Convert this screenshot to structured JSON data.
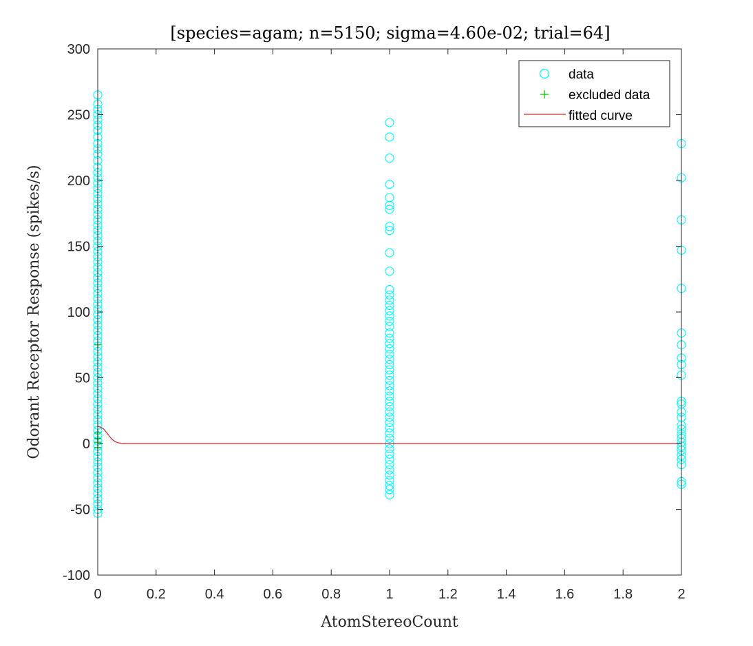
{
  "chart_data": {
    "type": "scatter",
    "title": "[species=agam; n=5150; sigma=4.60e-02; trial=64]",
    "xlabel": "AtomStereoCount",
    "ylabel": "Odorant Receptor Response (spikes/s)",
    "xlim": [
      0,
      2
    ],
    "ylim": [
      -100,
      300
    ],
    "xticks": [
      "0",
      "0.2",
      "0.4",
      "0.6",
      "0.8",
      "1",
      "1.2",
      "1.4",
      "1.6",
      "1.8",
      "2"
    ],
    "yticks": [
      "-100",
      "-50",
      "0",
      "50",
      "100",
      "150",
      "200",
      "250",
      "300"
    ],
    "legend_position": "top-right",
    "series": [
      {
        "name": "data",
        "marker": "circle",
        "color": "#00ffff",
        "points": [
          [
            0,
            265
          ],
          [
            0,
            258
          ],
          [
            0,
            254
          ],
          [
            0,
            250
          ],
          [
            0,
            246
          ],
          [
            0,
            242
          ],
          [
            0,
            238
          ],
          [
            0,
            233
          ],
          [
            0,
            228
          ],
          [
            0,
            224
          ],
          [
            0,
            220
          ],
          [
            0,
            215
          ],
          [
            0,
            210
          ],
          [
            0,
            206
          ],
          [
            0,
            202
          ],
          [
            0,
            198
          ],
          [
            0,
            194
          ],
          [
            0,
            190
          ],
          [
            0,
            186
          ],
          [
            0,
            182
          ],
          [
            0,
            178
          ],
          [
            0,
            174
          ],
          [
            0,
            170
          ],
          [
            0,
            166
          ],
          [
            0,
            162
          ],
          [
            0,
            158
          ],
          [
            0,
            154
          ],
          [
            0,
            150
          ],
          [
            0,
            146
          ],
          [
            0,
            142
          ],
          [
            0,
            138
          ],
          [
            0,
            134
          ],
          [
            0,
            130
          ],
          [
            0,
            126
          ],
          [
            0,
            122
          ],
          [
            0,
            118
          ],
          [
            0,
            114
          ],
          [
            0,
            110
          ],
          [
            0,
            106
          ],
          [
            0,
            102
          ],
          [
            0,
            98
          ],
          [
            0,
            94
          ],
          [
            0,
            90
          ],
          [
            0,
            86
          ],
          [
            0,
            82
          ],
          [
            0,
            78
          ],
          [
            0,
            74
          ],
          [
            0,
            70
          ],
          [
            0,
            66
          ],
          [
            0,
            62
          ],
          [
            0,
            58
          ],
          [
            0,
            54
          ],
          [
            0,
            50
          ],
          [
            0,
            46
          ],
          [
            0,
            42
          ],
          [
            0,
            38
          ],
          [
            0,
            34
          ],
          [
            0,
            30
          ],
          [
            0,
            26
          ],
          [
            0,
            22
          ],
          [
            0,
            18
          ],
          [
            0,
            14
          ],
          [
            0,
            10
          ],
          [
            0,
            6
          ],
          [
            0,
            2
          ],
          [
            0,
            -2
          ],
          [
            0,
            -6
          ],
          [
            0,
            -10
          ],
          [
            0,
            -14
          ],
          [
            0,
            -18
          ],
          [
            0,
            -22
          ],
          [
            0,
            -26
          ],
          [
            0,
            -30
          ],
          [
            0,
            -34
          ],
          [
            0,
            -38
          ],
          [
            0,
            -42
          ],
          [
            0,
            -46
          ],
          [
            0,
            -50
          ],
          [
            0,
            -53
          ],
          [
            1,
            244
          ],
          [
            1,
            233
          ],
          [
            1,
            217
          ],
          [
            1,
            197
          ],
          [
            1,
            187
          ],
          [
            1,
            181
          ],
          [
            1,
            178
          ],
          [
            1,
            165
          ],
          [
            1,
            162
          ],
          [
            1,
            145
          ],
          [
            1,
            131
          ],
          [
            1,
            117
          ],
          [
            1,
            113
          ],
          [
            1,
            109
          ],
          [
            1,
            105
          ],
          [
            1,
            101
          ],
          [
            1,
            97
          ],
          [
            1,
            93
          ],
          [
            1,
            89
          ],
          [
            1,
            84
          ],
          [
            1,
            80
          ],
          [
            1,
            76
          ],
          [
            1,
            72
          ],
          [
            1,
            68
          ],
          [
            1,
            64
          ],
          [
            1,
            60
          ],
          [
            1,
            56
          ],
          [
            1,
            52
          ],
          [
            1,
            48
          ],
          [
            1,
            44
          ],
          [
            1,
            40
          ],
          [
            1,
            36
          ],
          [
            1,
            32
          ],
          [
            1,
            28
          ],
          [
            1,
            24
          ],
          [
            1,
            20
          ],
          [
            1,
            16
          ],
          [
            1,
            12
          ],
          [
            1,
            8
          ],
          [
            1,
            4
          ],
          [
            1,
            0
          ],
          [
            1,
            -4
          ],
          [
            1,
            -8
          ],
          [
            1,
            -12
          ],
          [
            1,
            -16
          ],
          [
            1,
            -20
          ],
          [
            1,
            -24
          ],
          [
            1,
            -28
          ],
          [
            1,
            -32
          ],
          [
            1,
            -35
          ],
          [
            1,
            -39
          ],
          [
            2,
            228
          ],
          [
            2,
            202
          ],
          [
            2,
            170
          ],
          [
            2,
            147
          ],
          [
            2,
            118
          ],
          [
            2,
            84
          ],
          [
            2,
            75
          ],
          [
            2,
            65
          ],
          [
            2,
            60
          ],
          [
            2,
            52
          ],
          [
            2,
            32
          ],
          [
            2,
            30
          ],
          [
            2,
            24
          ],
          [
            2,
            20
          ],
          [
            2,
            14
          ],
          [
            2,
            11
          ],
          [
            2,
            7
          ],
          [
            2,
            4
          ],
          [
            2,
            1
          ],
          [
            2,
            -2
          ],
          [
            2,
            -5
          ],
          [
            2,
            -9
          ],
          [
            2,
            -12
          ],
          [
            2,
            -16
          ],
          [
            2,
            -29
          ],
          [
            2,
            -31
          ]
        ]
      },
      {
        "name": "excluded data",
        "marker": "plus",
        "color": "#00cc00",
        "points": [
          [
            0,
            75
          ],
          [
            0,
            8
          ],
          [
            0,
            4
          ],
          [
            0,
            1
          ],
          [
            0,
            -3
          ]
        ]
      },
      {
        "name": "fitted curve",
        "marker": "line",
        "color": "#e02020",
        "points": [
          [
            0,
            13
          ],
          [
            0.01,
            12.5
          ],
          [
            0.02,
            11
          ],
          [
            0.03,
            8.5
          ],
          [
            0.04,
            5.5
          ],
          [
            0.05,
            3
          ],
          [
            0.06,
            1.4
          ],
          [
            0.07,
            0.6
          ],
          [
            0.08,
            0.2
          ],
          [
            0.1,
            0
          ],
          [
            0.5,
            0
          ],
          [
            1,
            0
          ],
          [
            1.5,
            0
          ],
          [
            2,
            0
          ]
        ]
      }
    ]
  }
}
